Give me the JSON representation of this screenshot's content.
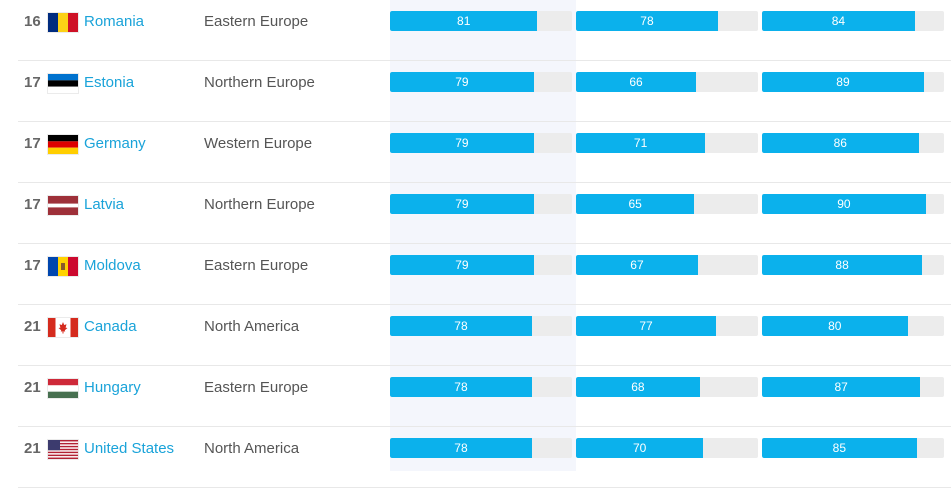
{
  "rows": [
    {
      "rank": "16",
      "country": "Romania",
      "flag_icon": "romania-flag",
      "region": "Eastern Europe",
      "scores": [
        81,
        78,
        84
      ]
    },
    {
      "rank": "17",
      "country": "Estonia",
      "flag_icon": "estonia-flag",
      "region": "Northern Europe",
      "scores": [
        79,
        66,
        89
      ]
    },
    {
      "rank": "17",
      "country": "Germany",
      "flag_icon": "germany-flag",
      "region": "Western Europe",
      "scores": [
        79,
        71,
        86
      ]
    },
    {
      "rank": "17",
      "country": "Latvia",
      "flag_icon": "latvia-flag",
      "region": "Northern Europe",
      "scores": [
        79,
        65,
        90
      ]
    },
    {
      "rank": "17",
      "country": "Moldova",
      "flag_icon": "moldova-flag",
      "region": "Eastern Europe",
      "scores": [
        79,
        67,
        88
      ]
    },
    {
      "rank": "21",
      "country": "Canada",
      "flag_icon": "canada-flag",
      "region": "North America",
      "scores": [
        78,
        77,
        80
      ]
    },
    {
      "rank": "21",
      "country": "Hungary",
      "flag_icon": "hungary-flag",
      "region": "Eastern Europe",
      "scores": [
        78,
        68,
        87
      ]
    },
    {
      "rank": "21",
      "country": "United States",
      "flag_icon": "usa-flag",
      "region": "North America",
      "scores": [
        78,
        70,
        85
      ]
    }
  ],
  "colors": {
    "bar_fill": "#0bb1ec",
    "bar_track": "#ececec",
    "link": "#1aa3d9",
    "highlight_column": "#f4f6fc"
  }
}
